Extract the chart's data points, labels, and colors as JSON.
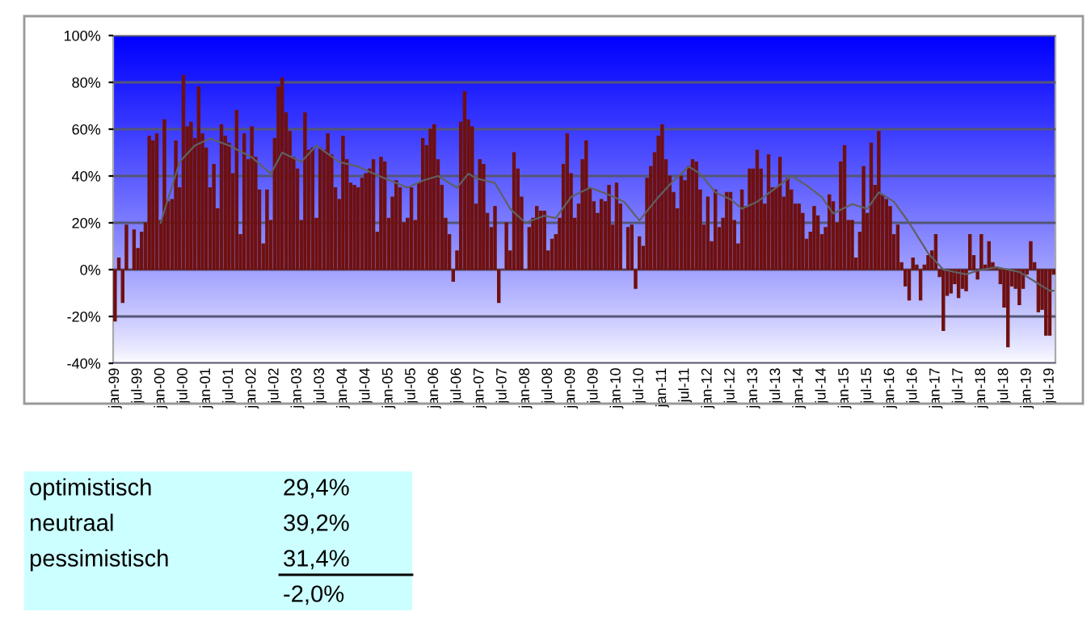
{
  "chart_data": {
    "type": "bar",
    "categories": [
      "jan-99",
      null,
      null,
      null,
      null,
      null,
      "jul-99",
      null,
      null,
      null,
      null,
      null,
      "jan-00",
      null,
      null,
      null,
      null,
      null,
      "jul-00",
      null,
      null,
      null,
      null,
      null,
      "jan-01",
      null,
      null,
      null,
      null,
      null,
      "jul-01",
      null,
      null,
      null,
      null,
      null,
      "jan-02",
      null,
      null,
      null,
      null,
      null,
      "jul-02",
      null,
      null,
      null,
      null,
      null,
      "jan-03",
      null,
      null,
      null,
      null,
      null,
      "jul-03",
      null,
      null,
      null,
      null,
      null,
      "jan-04",
      null,
      null,
      null,
      null,
      null,
      "jul-04",
      null,
      null,
      null,
      null,
      null,
      "jan-05",
      null,
      null,
      null,
      null,
      null,
      "jul-05",
      null,
      null,
      null,
      null,
      null,
      "jan-06",
      null,
      null,
      null,
      null,
      null,
      "jul-06",
      null,
      null,
      null,
      null,
      null,
      "jan-07",
      null,
      null,
      null,
      null,
      null,
      "jul-07",
      null,
      null,
      null,
      null,
      null,
      "jan-08",
      null,
      null,
      null,
      null,
      null,
      "jul-08",
      null,
      null,
      null,
      null,
      null,
      "jan-09",
      null,
      null,
      null,
      null,
      null,
      "jul-09",
      null,
      null,
      null,
      null,
      null,
      "jan-10",
      null,
      null,
      null,
      null,
      null,
      "jul-10",
      null,
      null,
      null,
      null,
      null,
      "jan-11",
      null,
      null,
      null,
      null,
      null,
      "jul-11",
      null,
      null,
      null,
      null,
      null,
      "jan-12",
      null,
      null,
      null,
      null,
      null,
      "jul-12",
      null,
      null,
      null,
      null,
      null,
      "jan-13",
      null,
      null,
      null,
      null,
      null,
      "jul-13",
      null,
      null,
      null,
      null,
      null,
      "jan-14",
      null,
      null,
      null,
      null,
      null,
      "jul-14",
      null,
      null,
      null,
      null,
      null,
      "jan-15",
      null,
      null,
      null,
      null,
      null,
      "jul-15",
      null,
      null,
      null,
      null,
      null,
      "jan-16",
      null,
      null,
      null,
      null,
      null,
      "jul-16",
      null,
      null,
      null,
      null,
      null,
      "jan-17",
      null,
      null,
      null,
      null,
      null,
      "jul-17",
      null,
      null,
      null,
      null,
      null,
      "jan-18",
      null,
      null,
      null,
      null,
      null,
      "jul-18",
      null,
      null,
      null,
      null,
      null,
      "jan-19",
      null,
      null,
      null,
      null,
      null,
      "jul-19",
      null
    ],
    "ylim": [
      -40,
      100
    ],
    "yticks": [
      {
        "value": -40,
        "label": "-40%"
      },
      {
        "value": -20,
        "label": "-20%"
      },
      {
        "value": 0,
        "label": "0%"
      },
      {
        "value": 20,
        "label": "20%"
      },
      {
        "value": 40,
        "label": "40%"
      },
      {
        "value": 60,
        "label": "60%"
      },
      {
        "value": 80,
        "label": "80%"
      },
      {
        "value": 100,
        "label": "100%"
      }
    ],
    "grid": "y",
    "series": [
      {
        "color": "#6e1010",
        "values": [
          -22,
          5,
          -14,
          19,
          0,
          17,
          9,
          16,
          20,
          57,
          55,
          58,
          21,
          64,
          29,
          30,
          55,
          35,
          83,
          61,
          63,
          56,
          78,
          58,
          52,
          35,
          45,
          26,
          62,
          57,
          54,
          41,
          68,
          15,
          58,
          47,
          61,
          48,
          34,
          11,
          34,
          21,
          56,
          78,
          82,
          67,
          59,
          48,
          43,
          21,
          67,
          51,
          52,
          22,
          52,
          51,
          58,
          49,
          35,
          30,
          57,
          47,
          37,
          36,
          35,
          39,
          41,
          43,
          47,
          16,
          48,
          46,
          22,
          31,
          38,
          35,
          20,
          22,
          35,
          21,
          37,
          56,
          53,
          60,
          62,
          47,
          36,
          22,
          15,
          -5,
          8,
          63,
          76,
          64,
          61,
          28,
          47,
          45,
          24,
          18,
          27,
          -14,
          0,
          20,
          8,
          50,
          43,
          31,
          0,
          18,
          22,
          27,
          25,
          25,
          8,
          13,
          15,
          22,
          45,
          58,
          41,
          22,
          28,
          47,
          55,
          35,
          29,
          24,
          30,
          29,
          36,
          19,
          37,
          28,
          0,
          18,
          19,
          -8,
          14,
          10,
          39,
          44,
          50,
          57,
          62,
          47,
          40,
          33,
          26,
          40,
          38,
          44,
          47,
          46,
          34,
          19,
          31,
          12,
          34,
          18,
          22,
          33,
          33,
          21,
          11,
          34,
          27,
          43,
          43,
          51,
          43,
          28,
          49,
          35,
          35,
          48,
          31,
          39,
          34,
          28,
          28,
          24,
          13,
          16,
          27,
          23,
          15,
          18,
          32,
          29,
          20,
          46,
          53,
          21,
          21,
          5,
          16,
          44,
          24,
          54,
          36,
          59,
          32,
          30,
          27,
          15,
          19,
          3,
          -7,
          -13,
          5,
          2,
          -13,
          2,
          6,
          8,
          15,
          -3,
          -26,
          -11,
          -10,
          -6,
          -12,
          -8,
          -9,
          15,
          6,
          -4,
          15,
          2,
          12,
          3,
          1,
          -6,
          -16,
          -33,
          -7,
          -8,
          -15,
          -8,
          -2,
          12,
          3,
          -18,
          -17,
          -28,
          -28,
          -2
        ]
      },
      {
        "type": "line",
        "color": "#606060",
        "values": [
          null,
          null,
          null,
          null,
          null,
          null,
          null,
          null,
          null,
          null,
          null,
          null,
          20,
          null,
          null,
          null,
          null,
          46,
          null,
          null,
          null,
          53,
          null,
          null,
          null,
          56,
          null,
          null,
          null,
          null,
          53,
          null,
          null,
          null,
          null,
          null,
          48,
          null,
          null,
          null,
          null,
          41,
          null,
          null,
          50,
          null,
          null,
          null,
          null,
          46,
          null,
          null,
          null,
          53,
          null,
          null,
          null,
          null,
          null,
          46,
          null,
          null,
          null,
          null,
          44,
          null,
          null,
          null,
          null,
          null,
          null,
          39,
          null,
          null,
          null,
          null,
          null,
          35,
          null,
          null,
          null,
          38,
          null,
          null,
          null,
          40,
          null,
          null,
          null,
          null,
          35,
          null,
          null,
          41,
          null,
          39,
          null,
          null,
          null,
          null,
          37,
          null,
          null,
          null,
          26,
          null,
          null,
          null,
          20,
          null,
          null,
          null,
          null,
          23,
          null,
          null,
          22,
          null,
          null,
          null,
          31,
          null,
          null,
          null,
          null,
          35,
          null,
          null,
          null,
          null,
          32,
          null,
          null,
          null,
          29,
          null,
          null,
          null,
          21,
          null,
          null,
          null,
          null,
          31,
          null,
          null,
          null,
          38,
          null,
          null,
          null,
          44,
          null,
          null,
          41,
          null,
          null,
          null,
          33,
          null,
          null,
          null,
          30,
          null,
          null,
          26,
          null,
          null,
          null,
          29,
          null,
          null,
          null,
          null,
          35,
          null,
          null,
          null,
          40,
          null,
          null,
          null,
          36,
          null,
          null,
          null,
          31,
          null,
          null,
          24,
          null,
          null,
          null,
          null,
          28,
          null,
          null,
          null,
          26,
          null,
          null,
          33,
          null,
          null,
          null,
          29,
          null,
          null,
          null,
          20,
          null,
          null,
          null,
          null,
          7,
          null,
          null,
          null,
          0,
          null,
          null,
          null,
          null,
          null,
          -2,
          null,
          null,
          null,
          0,
          null,
          null,
          null,
          1,
          null,
          null,
          null,
          null,
          null,
          -1,
          null,
          null,
          null,
          -5,
          null,
          null,
          null,
          -9,
          -9
        ]
      }
    ],
    "annotations": [
      "optimistisch",
      "29,4%",
      "neutraal",
      "39,2%",
      "pessimistisch",
      "31,4%",
      "-2,0%"
    ]
  }
}
